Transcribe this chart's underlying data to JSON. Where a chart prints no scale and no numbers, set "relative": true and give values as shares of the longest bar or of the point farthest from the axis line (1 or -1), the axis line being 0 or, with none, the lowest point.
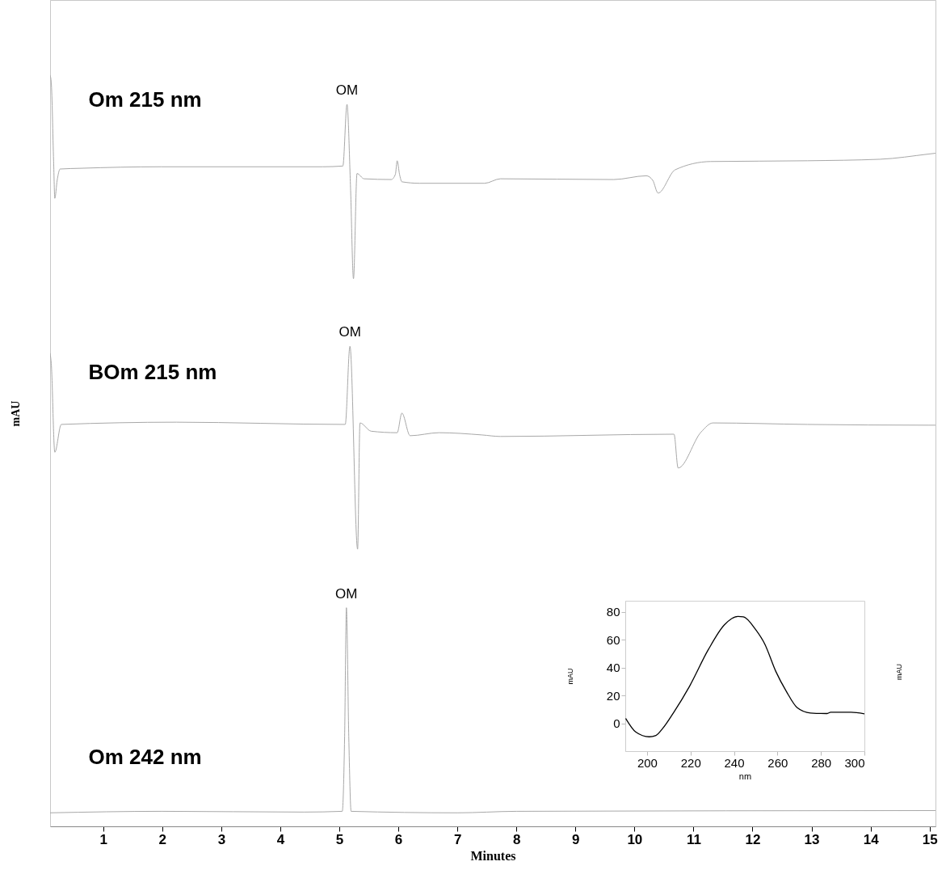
{
  "chart_data": [
    {
      "type": "line",
      "xlabel": "Minutes",
      "ylabel": "mAU",
      "relative": true,
      "xlim": [
        0.1,
        15.1
      ],
      "xticks": [
        1,
        2,
        3,
        4,
        5,
        6,
        7,
        8,
        9,
        10,
        11,
        12,
        13,
        14,
        15
      ],
      "series": [
        {
          "name": "Om 215 nm",
          "color": "#a8a8a8",
          "x": [
            0.1,
            0.12,
            0.16,
            0.18,
            0.22,
            0.27,
            0.62,
            1.98,
            4.72,
            5.06,
            5.13,
            5.19,
            5.24,
            5.3,
            5.42,
            5.88,
            5.95,
            5.98,
            6.02,
            6.06,
            6.36,
            7.46,
            7.73,
            9.65,
            10.2,
            10.31,
            10.4,
            10.69,
            11.29,
            12.93,
            14.16,
            14.99,
            15.1
          ],
          "values": [
            1.0,
            0.99,
            0.885,
            0.836,
            0.86,
            0.875,
            0.876,
            0.878,
            0.878,
            0.879,
            0.961,
            0.85,
            0.729,
            0.869,
            0.862,
            0.861,
            0.868,
            0.886,
            0.868,
            0.858,
            0.856,
            0.856,
            0.862,
            0.861,
            0.866,
            0.86,
            0.843,
            0.874,
            0.885,
            0.886,
            0.888,
            0.895,
            0.896
          ]
        },
        {
          "name": "BOm 215 nm",
          "color": "#a8a8a8",
          "x": [
            0.1,
            0.12,
            0.18,
            0.29,
            2.24,
            5.1,
            5.18,
            5.31,
            5.35,
            5.54,
            5.98,
            6.06,
            6.2,
            6.69,
            7.42,
            7.73,
            10.67,
            10.74,
            11.13,
            11.33,
            12.93,
            14.99,
            15.1
          ],
          "values": [
            0.63,
            0.616,
            0.498,
            0.535,
            0.538,
            0.535,
            0.639,
            0.369,
            0.537,
            0.526,
            0.524,
            0.55,
            0.52,
            0.524,
            0.521,
            0.519,
            0.522,
            0.477,
            0.525,
            0.537,
            0.535,
            0.534,
            0.534
          ]
        },
        {
          "name": "Om 242 nm",
          "color": "#a8a8a8",
          "x": [
            0.1,
            2,
            4.4,
            5.05,
            5.09,
            5.12,
            5.16,
            5.2,
            7,
            8,
            15.1
          ],
          "values": [
            0.018,
            0.02,
            0.019,
            0.02,
            0.12,
            0.291,
            0.12,
            0.02,
            0.018,
            0.02,
            0.021
          ]
        }
      ],
      "annotations": [
        {
          "text": "OM",
          "x": 5.13,
          "y": 0.961
        },
        {
          "text": "OM",
          "x": 5.18,
          "y": 0.639
        },
        {
          "text": "OM",
          "x": 5.12,
          "y": 0.291
        }
      ]
    },
    {
      "type": "line",
      "xlabel": "nm",
      "ylabel": "mAU",
      "y2label": "mAU",
      "xlim": [
        190,
        300
      ],
      "xticks": [
        200,
        220,
        240,
        260,
        280,
        300
      ],
      "ylim": [
        -20,
        88
      ],
      "yticks": [
        0,
        20,
        40,
        60,
        80
      ],
      "series": [
        {
          "color": "#000000",
          "x": [
            190.2,
            194.8,
            201,
            204.1,
            207.2,
            212.1,
            219.6,
            228.2,
            235.6,
            241.8,
            244.3,
            249.9,
            254.2,
            259.2,
            264.1,
            269.1,
            275.2,
            282.7,
            284.5,
            293.8,
            300
          ],
          "values": [
            3.5,
            -6.2,
            -9.7,
            -8.7,
            -3.7,
            7.4,
            26.7,
            52.9,
            70.7,
            76.7,
            76.4,
            67.4,
            56.8,
            37.4,
            22.9,
            11.2,
            7.4,
            7.0,
            7.9,
            7.9,
            6.8
          ]
        }
      ]
    }
  ]
}
